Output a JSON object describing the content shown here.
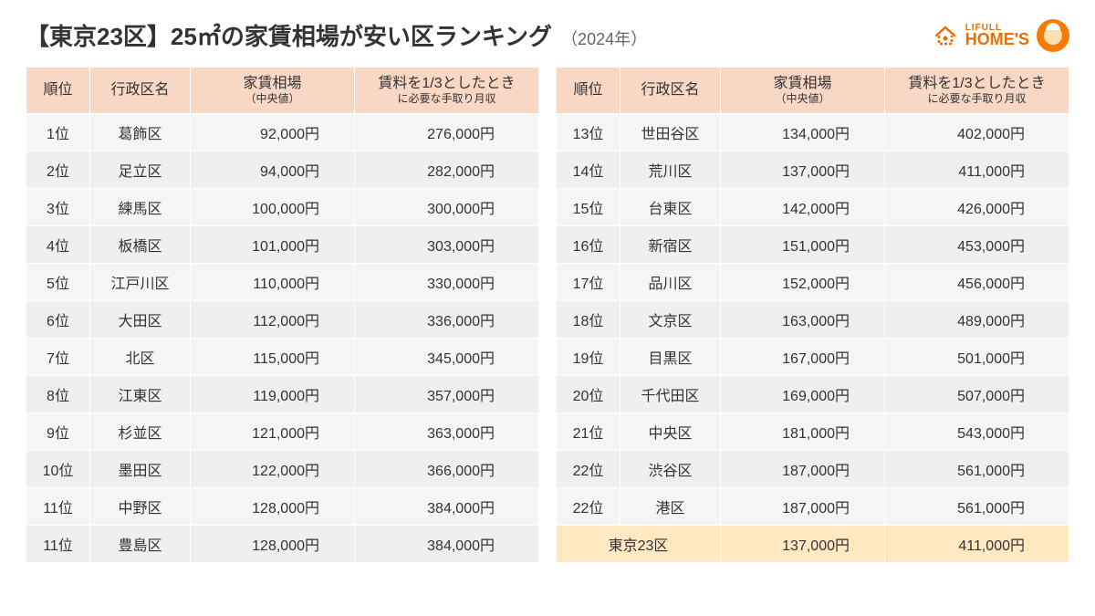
{
  "header": {
    "title_main": "【東京23区】25㎡の家賃相場が安い区ランキング",
    "title_sub": "（2024年）",
    "logo_lifull": "LIFULL",
    "logo_homes": "HOME'S"
  },
  "columns": {
    "rank": "順位",
    "ward": "行政区名",
    "rent_line1": "家賃相場",
    "rent_line2": "（中央値）",
    "income_line1": "賃料を1/3としたとき",
    "income_line2": "に必要な手取り月収"
  },
  "left_rows": [
    {
      "rank": "1位",
      "ward": "葛飾区",
      "rent": "92,000円",
      "income": "276,000円"
    },
    {
      "rank": "2位",
      "ward": "足立区",
      "rent": "94,000円",
      "income": "282,000円"
    },
    {
      "rank": "3位",
      "ward": "練馬区",
      "rent": "100,000円",
      "income": "300,000円"
    },
    {
      "rank": "4位",
      "ward": "板橋区",
      "rent": "101,000円",
      "income": "303,000円"
    },
    {
      "rank": "5位",
      "ward": "江戸川区",
      "rent": "110,000円",
      "income": "330,000円"
    },
    {
      "rank": "6位",
      "ward": "大田区",
      "rent": "112,000円",
      "income": "336,000円"
    },
    {
      "rank": "7位",
      "ward": "北区",
      "rent": "115,000円",
      "income": "345,000円"
    },
    {
      "rank": "8位",
      "ward": "江東区",
      "rent": "119,000円",
      "income": "357,000円"
    },
    {
      "rank": "9位",
      "ward": "杉並区",
      "rent": "121,000円",
      "income": "363,000円"
    },
    {
      "rank": "10位",
      "ward": "墨田区",
      "rent": "122,000円",
      "income": "366,000円"
    },
    {
      "rank": "11位",
      "ward": "中野区",
      "rent": "128,000円",
      "income": "384,000円"
    },
    {
      "rank": "11位",
      "ward": "豊島区",
      "rent": "128,000円",
      "income": "384,000円"
    }
  ],
  "right_rows": [
    {
      "rank": "13位",
      "ward": "世田谷区",
      "rent": "134,000円",
      "income": "402,000円"
    },
    {
      "rank": "14位",
      "ward": "荒川区",
      "rent": "137,000円",
      "income": "411,000円"
    },
    {
      "rank": "15位",
      "ward": "台東区",
      "rent": "142,000円",
      "income": "426,000円"
    },
    {
      "rank": "16位",
      "ward": "新宿区",
      "rent": "151,000円",
      "income": "453,000円"
    },
    {
      "rank": "17位",
      "ward": "品川区",
      "rent": "152,000円",
      "income": "456,000円"
    },
    {
      "rank": "18位",
      "ward": "文京区",
      "rent": "163,000円",
      "income": "489,000円"
    },
    {
      "rank": "19位",
      "ward": "目黒区",
      "rent": "167,000円",
      "income": "501,000円"
    },
    {
      "rank": "20位",
      "ward": "千代田区",
      "rent": "169,000円",
      "income": "507,000円"
    },
    {
      "rank": "21位",
      "ward": "中央区",
      "rent": "181,000円",
      "income": "543,000円"
    },
    {
      "rank": "22位",
      "ward": "渋谷区",
      "rent": "187,000円",
      "income": "561,000円"
    },
    {
      "rank": "22位",
      "ward": "港区",
      "rent": "187,000円",
      "income": "561,000円"
    }
  ],
  "summary": {
    "ward": "東京23区",
    "rent": "137,000円",
    "income": "411,000円"
  },
  "style": {
    "header_bg": "#f8d7c4",
    "row_odd_bg": "#f5f5f5",
    "row_even_bg": "#efefef",
    "summary_bg": "#ffe8c2",
    "logo_color": "#ef6c00",
    "title_fontsize": 26
  }
}
